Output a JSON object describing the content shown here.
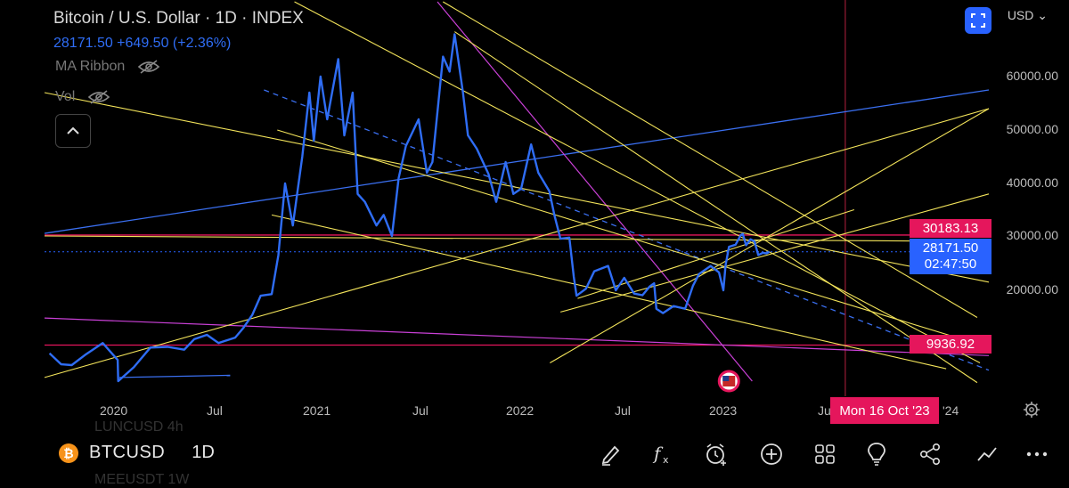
{
  "header": {
    "title": "Bitcoin / U.S. Dollar · 1D · INDEX",
    "price_line": "28171.50  +649.50 (+2.36%)",
    "indicator_ma": "MA Ribbon",
    "indicator_vol": "Vol"
  },
  "currency": "USD",
  "price_labels": {
    "red_high": "30183.13",
    "current_price": "28171.50",
    "countdown": "02:47:50",
    "red_low": "9936.92"
  },
  "crosshair_date": "Mon 16 Oct '23",
  "toolbar": {
    "symbol": "BTCUSD",
    "interval": "1D",
    "ghost_above": "LUNCUSD  4h",
    "ghost_below": "MEEUSDT  1W"
  },
  "colors": {
    "price_line": "#2f6df5",
    "trend_yellow": "#f2e35a",
    "trend_purple": "#c940d6",
    "level_red": "#e5165c",
    "trend_blue": "#3a6ff0"
  },
  "chart_data": {
    "type": "line",
    "title": "Bitcoin / U.S. Dollar · 1D · INDEX",
    "series": [
      {
        "name": "BTCUSD",
        "x": [
          "2019-11-10",
          "2019-12-01",
          "2019-12-20",
          "2020-01-15",
          "2020-02-14",
          "2020-03-12",
          "2020-03-13",
          "2020-04-10",
          "2020-05-10",
          "2020-06-10",
          "2020-07-10",
          "2020-07-28",
          "2020-08-20",
          "2020-09-10",
          "2020-10-10",
          "2020-10-25",
          "2020-11-10",
          "2020-11-25",
          "2020-12-15",
          "2020-12-27",
          "2021-01-08",
          "2021-01-22",
          "2021-02-08",
          "2021-02-21",
          "2021-03-01",
          "2021-03-13",
          "2021-03-25",
          "2021-04-14",
          "2021-04-25",
          "2021-05-10",
          "2021-05-19",
          "2021-06-01",
          "2021-06-22",
          "2021-07-05",
          "2021-07-20",
          "2021-08-01",
          "2021-08-14",
          "2021-09-06",
          "2021-09-21",
          "2021-10-01",
          "2021-10-20",
          "2021-11-01",
          "2021-11-10",
          "2021-11-25",
          "2021-12-04",
          "2021-12-20",
          "2022-01-10",
          "2022-01-24",
          "2022-02-10",
          "2022-02-24",
          "2022-03-10",
          "2022-03-28",
          "2022-04-10",
          "2022-04-30",
          "2022-05-09",
          "2022-05-20",
          "2022-06-05",
          "2022-06-13",
          "2022-06-18",
          "2022-07-05",
          "2022-07-20",
          "2022-08-14",
          "2022-08-28",
          "2022-09-12",
          "2022-09-30",
          "2022-10-15",
          "2022-10-28",
          "2022-11-05",
          "2022-11-09",
          "2022-11-21",
          "2022-12-10",
          "2022-12-31",
          "2023-01-14",
          "2023-01-25",
          "2023-02-15",
          "2023-03-02",
          "2023-03-10",
          "2023-03-14",
          "2023-03-20",
          "2023-04-01",
          "2023-04-10",
          "2023-04-14",
          "2023-04-20",
          "2023-04-28",
          "2023-05-05",
          "2023-05-12",
          "2023-05-20",
          "2023-05-27",
          "2023-06-01"
        ],
        "values": [
          8800,
          7300,
          7200,
          8700,
          10300,
          7900,
          5000,
          6900,
          9600,
          9700,
          9300,
          11000,
          11800,
          10300,
          11300,
          13100,
          15500,
          19000,
          19300,
          26500,
          40000,
          32000,
          45000,
          57000,
          48000,
          60000,
          52000,
          63500,
          49000,
          57000,
          38000,
          36500,
          32000,
          34000,
          30000,
          41000,
          47000,
          52000,
          42000,
          44000,
          64000,
          61000,
          68500,
          57000,
          49000,
          46500,
          41800,
          36500,
          44000,
          38000,
          39000,
          47300,
          42000,
          38500,
          34000,
          29500,
          29700,
          22500,
          19000,
          20300,
          23500,
          24500,
          20000,
          22300,
          19400,
          19100,
          20700,
          21300,
          16600,
          15800,
          17100,
          16600,
          20800,
          23000,
          24500,
          23300,
          20000,
          24600,
          28000,
          28400,
          30100,
          30400,
          28300,
          29400,
          29000,
          26500,
          26900,
          26800,
          27100
        ]
      }
    ],
    "trendlines_yellow": [
      {
        "from": [
          "2019-11-01",
          30000
        ],
        "to": [
          "2024-07-01",
          29000
        ]
      },
      {
        "from": [
          "2019-11-01",
          57000
        ],
        "to": [
          "2024-07-01",
          21500
        ]
      },
      {
        "from": [
          "2019-11-01",
          5500
        ],
        "to": [
          "2024-07-01",
          54000
        ]
      },
      {
        "from": [
          "2020-12-25",
          50000
        ],
        "to": [
          "2024-06-15",
          10000
        ]
      },
      {
        "from": [
          "2021-01-25",
          75000
        ],
        "to": [
          "2024-06-15",
          7500
        ]
      },
      {
        "from": [
          "2022-05-20",
          16000
        ],
        "to": [
          "2024-07-01",
          38000
        ]
      },
      {
        "from": [
          "2021-11-10",
          69000
        ],
        "to": [
          "2024-06-10",
          4800
        ]
      },
      {
        "from": [
          "2022-05-01",
          7500
        ],
        "to": [
          "2024-07-01",
          54000
        ]
      },
      {
        "from": [
          "2022-06-20",
          18500
        ],
        "to": [
          "2023-11-01",
          35000
        ]
      },
      {
        "from": [
          "2021-10-20",
          75000
        ],
        "to": [
          "2024-06-10",
          15000
        ]
      },
      {
        "from": [
          "2020-12-15",
          34000
        ],
        "to": [
          "2024-04-15",
          6700
        ]
      }
    ],
    "trendlines_purple": [
      {
        "from": [
          "2019-11-01",
          14900
        ],
        "to": [
          "2024-07-01",
          8500
        ]
      },
      {
        "from": [
          "2021-10-10",
          75000
        ],
        "to": [
          "2023-05-01",
          5000
        ]
      }
    ],
    "trendline_blue": {
      "from": [
        "2019-11-01",
        30500
      ],
      "to": [
        "2024-07-01",
        57500
      ]
    },
    "trendline_blue_dashed": {
      "from": [
        "2020-12-01",
        57500
      ],
      "to": [
        "2024-07-01",
        6500
      ]
    },
    "horizontal_levels": [
      30183.13,
      9936.92
    ],
    "support_line": {
      "from": [
        "2020-03-15",
        5500
      ],
      "to": [
        "2020-10-01",
        5800
      ]
    },
    "x_ticks": [
      "2020",
      "Jul",
      "2021",
      "Jul",
      "2022",
      "Jul",
      "2023",
      "Jul",
      "'24"
    ],
    "y_ticks": [
      "60000.00",
      "50000.00",
      "40000.00",
      "30000.00",
      "20000.00"
    ],
    "y_tick_values": [
      60000,
      50000,
      40000,
      30000,
      20000
    ],
    "crosshair_x": "2023-10-16",
    "ylim": [
      4800,
      69000
    ],
    "xlim": [
      "2019-11-01",
      "2024-07-01"
    ]
  }
}
